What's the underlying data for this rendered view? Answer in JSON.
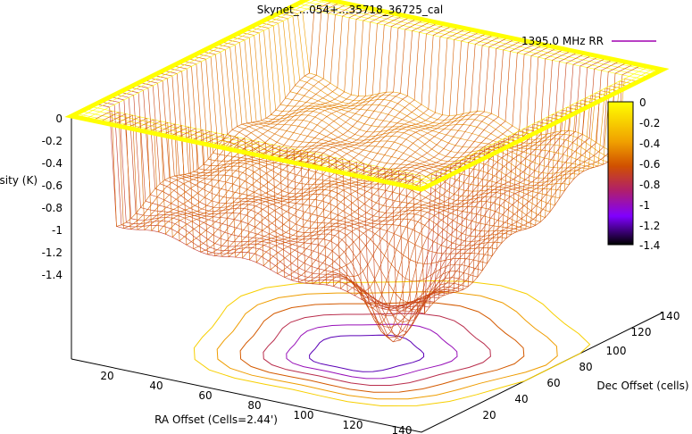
{
  "page": {
    "title": "Skynet_...054+...35718_36725_cal"
  },
  "chart_data": {
    "type": "surface3d",
    "title": "Skynet_...054+...35718_36725_cal",
    "legend": {
      "label": "1395.0 MHz RR",
      "position": "top-right"
    },
    "xlabel": "RA Offset (Cells=2.44')",
    "ylabel": "Dec Offset (cells)",
    "zlabel": "Intensity (K)",
    "x_ticks": [
      "20",
      "40",
      "60",
      "80",
      "100",
      "120",
      "140"
    ],
    "y_ticks": [
      "20",
      "40",
      "60",
      "80",
      "100",
      "120",
      "140"
    ],
    "z_ticks": [
      "0",
      "-0.2",
      "-0.4",
      "-0.6",
      "-0.8",
      "-1",
      "-1.2",
      "-1.4"
    ],
    "colorbar_ticks": [
      "0",
      "-0.2",
      "-0.4",
      "-0.6",
      "-0.8",
      "-1",
      "-1.2",
      "-1.4"
    ],
    "xlim": [
      0,
      150
    ],
    "ylim": [
      0,
      150
    ],
    "zlim": [
      -1.4,
      0
    ],
    "colors": {
      "surface_high": "#ffff00",
      "surface_mid": "#e07000",
      "surface_low": "#8000ff",
      "surface_min": "#000000",
      "legend_line": "#a000b0"
    },
    "description_free_values": {
      "plateau_level": 0,
      "grid_level": -0.35,
      "min_level": -1.4
    },
    "contour_levels": [
      -0.2,
      -0.4,
      -0.6,
      -0.8,
      -1.0,
      -1.2
    ]
  }
}
